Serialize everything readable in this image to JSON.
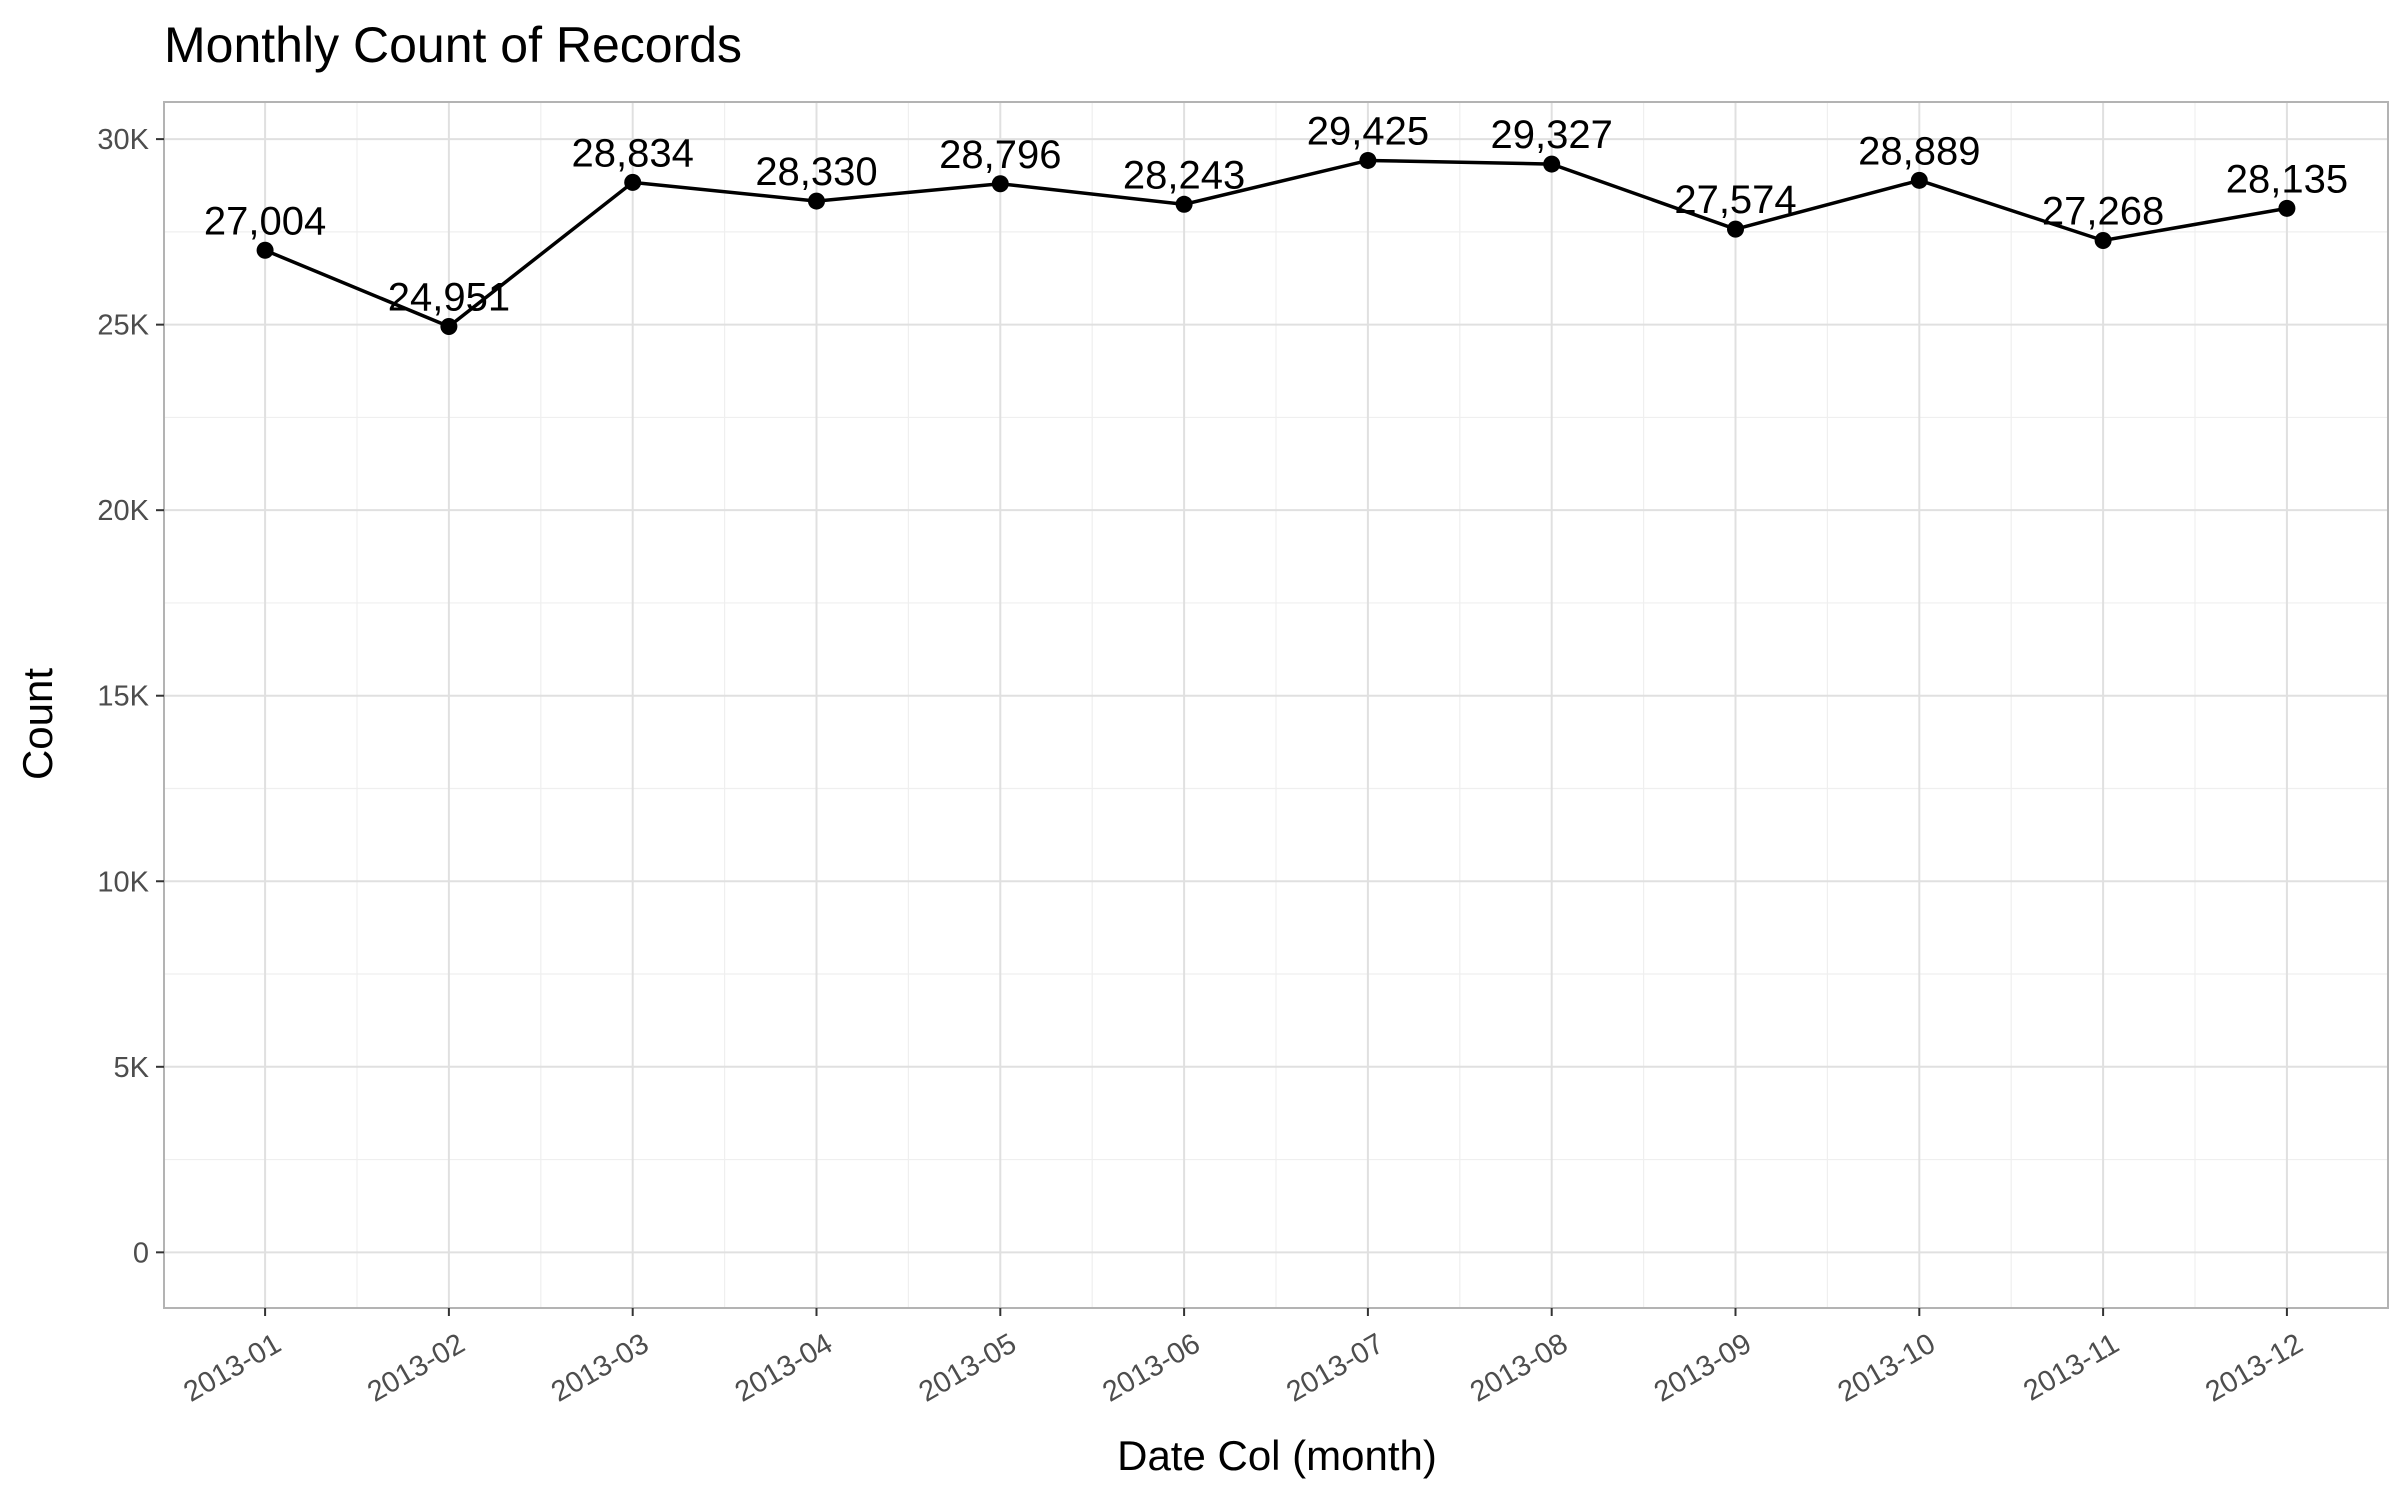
{
  "chart_data": {
    "type": "line",
    "title": "Monthly Count of Records",
    "xlabel": "Date Col (month)",
    "ylabel": "Count",
    "categories": [
      "2013-01",
      "2013-02",
      "2013-03",
      "2013-04",
      "2013-05",
      "2013-06",
      "2013-07",
      "2013-08",
      "2013-09",
      "2013-10",
      "2013-11",
      "2013-12"
    ],
    "values": [
      27004,
      24951,
      28834,
      28330,
      28796,
      28243,
      29425,
      29327,
      27574,
      28889,
      27268,
      28135
    ],
    "data_labels": [
      "27,004",
      "24,951",
      "28,834",
      "28,330",
      "28,796",
      "28,243",
      "29,425",
      "29,327",
      "27,574",
      "28,889",
      "27,268",
      "28,135"
    ],
    "ylim": [
      -1500,
      31000
    ],
    "yticks": [
      0,
      5000,
      10000,
      15000,
      20000,
      25000,
      30000
    ],
    "ytick_labels": [
      "0",
      "5K",
      "10K",
      "15K",
      "20K",
      "25K",
      "30K"
    ],
    "grid": true,
    "legend": "none",
    "colors": {
      "line": "#000000",
      "point": "#000000",
      "grid": "#e0e0e0"
    }
  }
}
